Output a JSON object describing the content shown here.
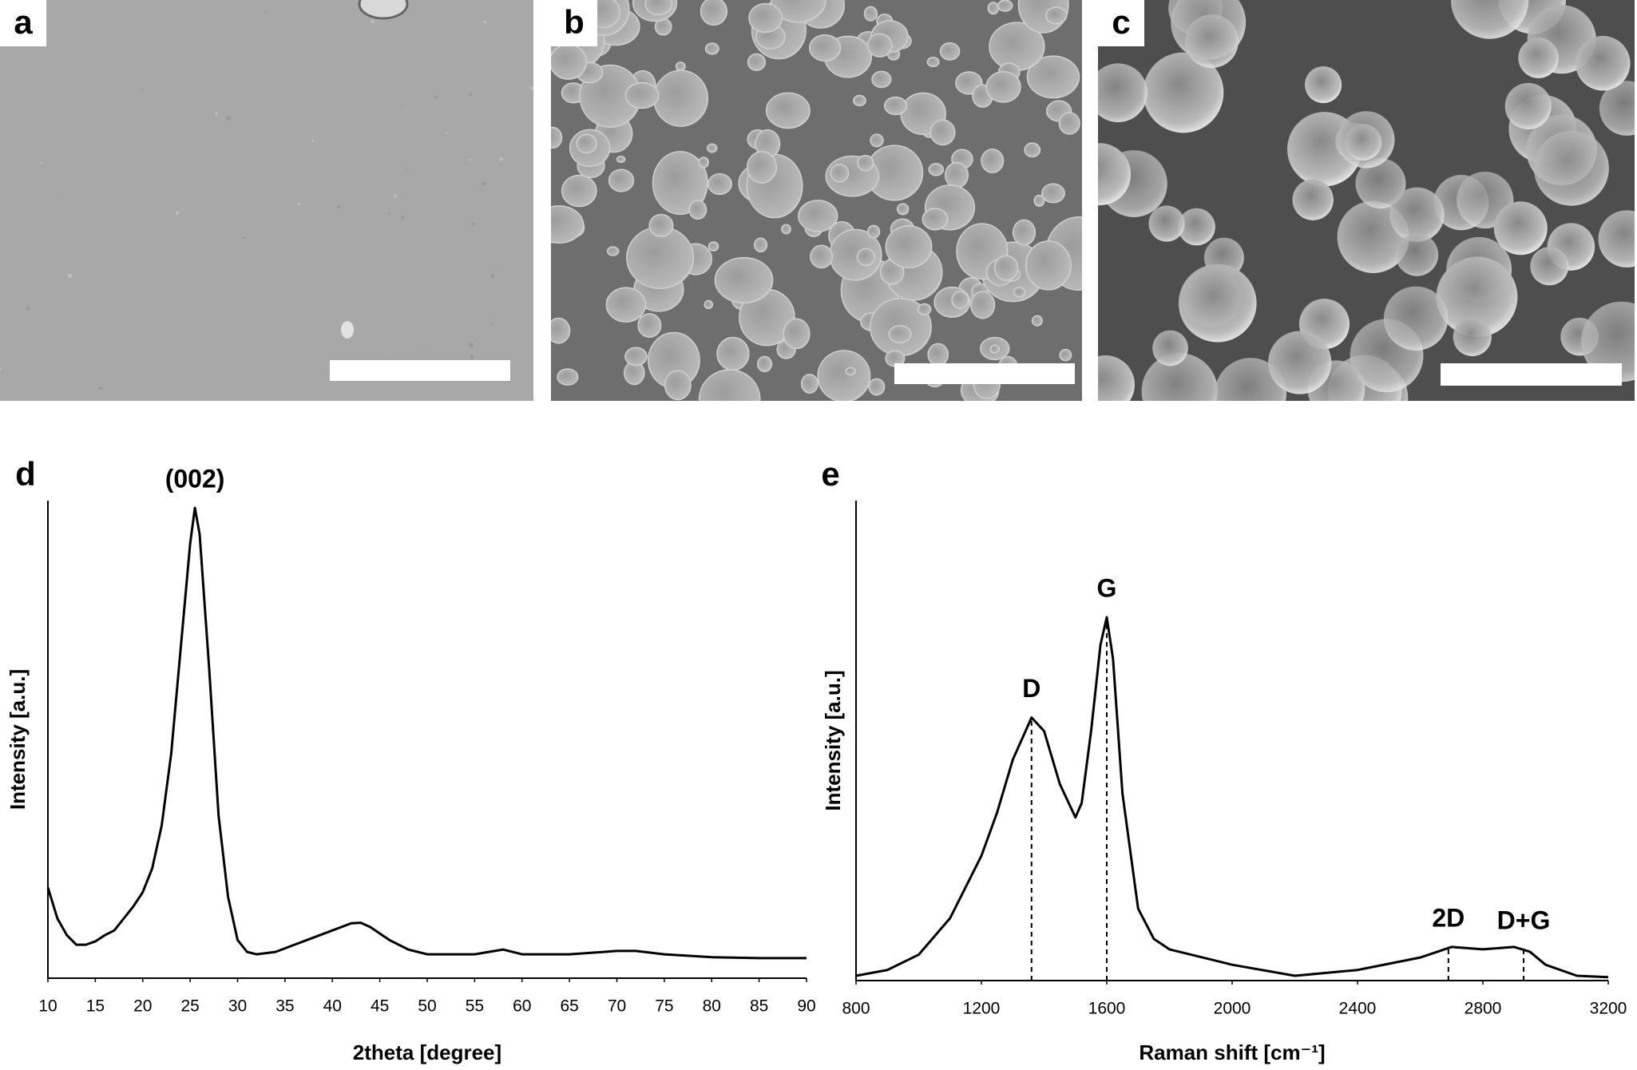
{
  "panels": [
    {
      "label": "a"
    },
    {
      "label": "b"
    },
    {
      "label": "c"
    }
  ],
  "chart_data": [
    {
      "type": "line",
      "panel_label": "d",
      "x_label": "2theta [degree]",
      "y_label": "Intensity [a.u.]",
      "color": "#000000",
      "x": [
        10,
        11,
        12,
        13,
        14,
        15,
        16,
        17,
        18,
        19,
        20,
        21,
        22,
        23,
        24,
        25,
        25.5,
        26,
        27,
        28,
        29,
        30,
        31,
        32,
        34,
        36,
        38,
        40,
        42,
        43,
        44,
        46,
        48,
        50,
        55,
        58,
        60,
        65,
        70,
        72,
        75,
        80,
        85,
        90
      ],
      "values": [
        19,
        12.5,
        9,
        7,
        7,
        7.7,
        9,
        10,
        12.5,
        15,
        18,
        23,
        32,
        47,
        69,
        91,
        98.5,
        93,
        65,
        34,
        17,
        8,
        5.5,
        5,
        5.5,
        7,
        8.5,
        10,
        11.5,
        11.6,
        10.7,
        8,
        6,
        5,
        5,
        6,
        5,
        5,
        5.7,
        5.7,
        5,
        4.4,
        4.2,
        4.2
      ],
      "xlim": [
        10,
        90
      ],
      "xticks": [
        10,
        15,
        20,
        25,
        30,
        35,
        40,
        45,
        50,
        55,
        60,
        65,
        70,
        75,
        80,
        85,
        90
      ],
      "ylim": [
        0,
        100
      ],
      "annotations": [
        {
          "text": "(002)",
          "x": 25.5,
          "y": 98.5
        }
      ]
    },
    {
      "type": "line",
      "panel_label": "e",
      "x_label": "Raman shift [cm⁻¹]",
      "y_label": "Intensity [a.u.]",
      "color": "#000000",
      "x": [
        800,
        900,
        1000,
        1100,
        1200,
        1250,
        1300,
        1360,
        1400,
        1450,
        1500,
        1520,
        1550,
        1580,
        1600,
        1620,
        1650,
        1700,
        1750,
        1800,
        2000,
        2200,
        2400,
        2600,
        2700,
        2800,
        2900,
        2950,
        3000,
        3100,
        3200
      ],
      "values": [
        1,
        2.2,
        5.4,
        13,
        26,
        35,
        46,
        54.8,
        52,
        41,
        34,
        37,
        52,
        70,
        75.7,
        67,
        39,
        15,
        8.7,
        6.5,
        3.3,
        1,
        2.2,
        4.8,
        7,
        6.5,
        7,
        6,
        3.3,
        1,
        0.7
      ],
      "xlim": [
        800,
        3200
      ],
      "xticks": [
        800,
        1200,
        1600,
        2000,
        2400,
        2800,
        3200
      ],
      "ylim": [
        0,
        100
      ],
      "guides": true,
      "annotations": [
        {
          "text": "D",
          "x": 1360,
          "y": 54.8
        },
        {
          "text": "G",
          "x": 1600,
          "y": 75.7
        },
        {
          "text": "2D",
          "x": 2690,
          "y": 7
        },
        {
          "text": "D+G",
          "x": 2930,
          "y": 6.5
        }
      ]
    }
  ]
}
